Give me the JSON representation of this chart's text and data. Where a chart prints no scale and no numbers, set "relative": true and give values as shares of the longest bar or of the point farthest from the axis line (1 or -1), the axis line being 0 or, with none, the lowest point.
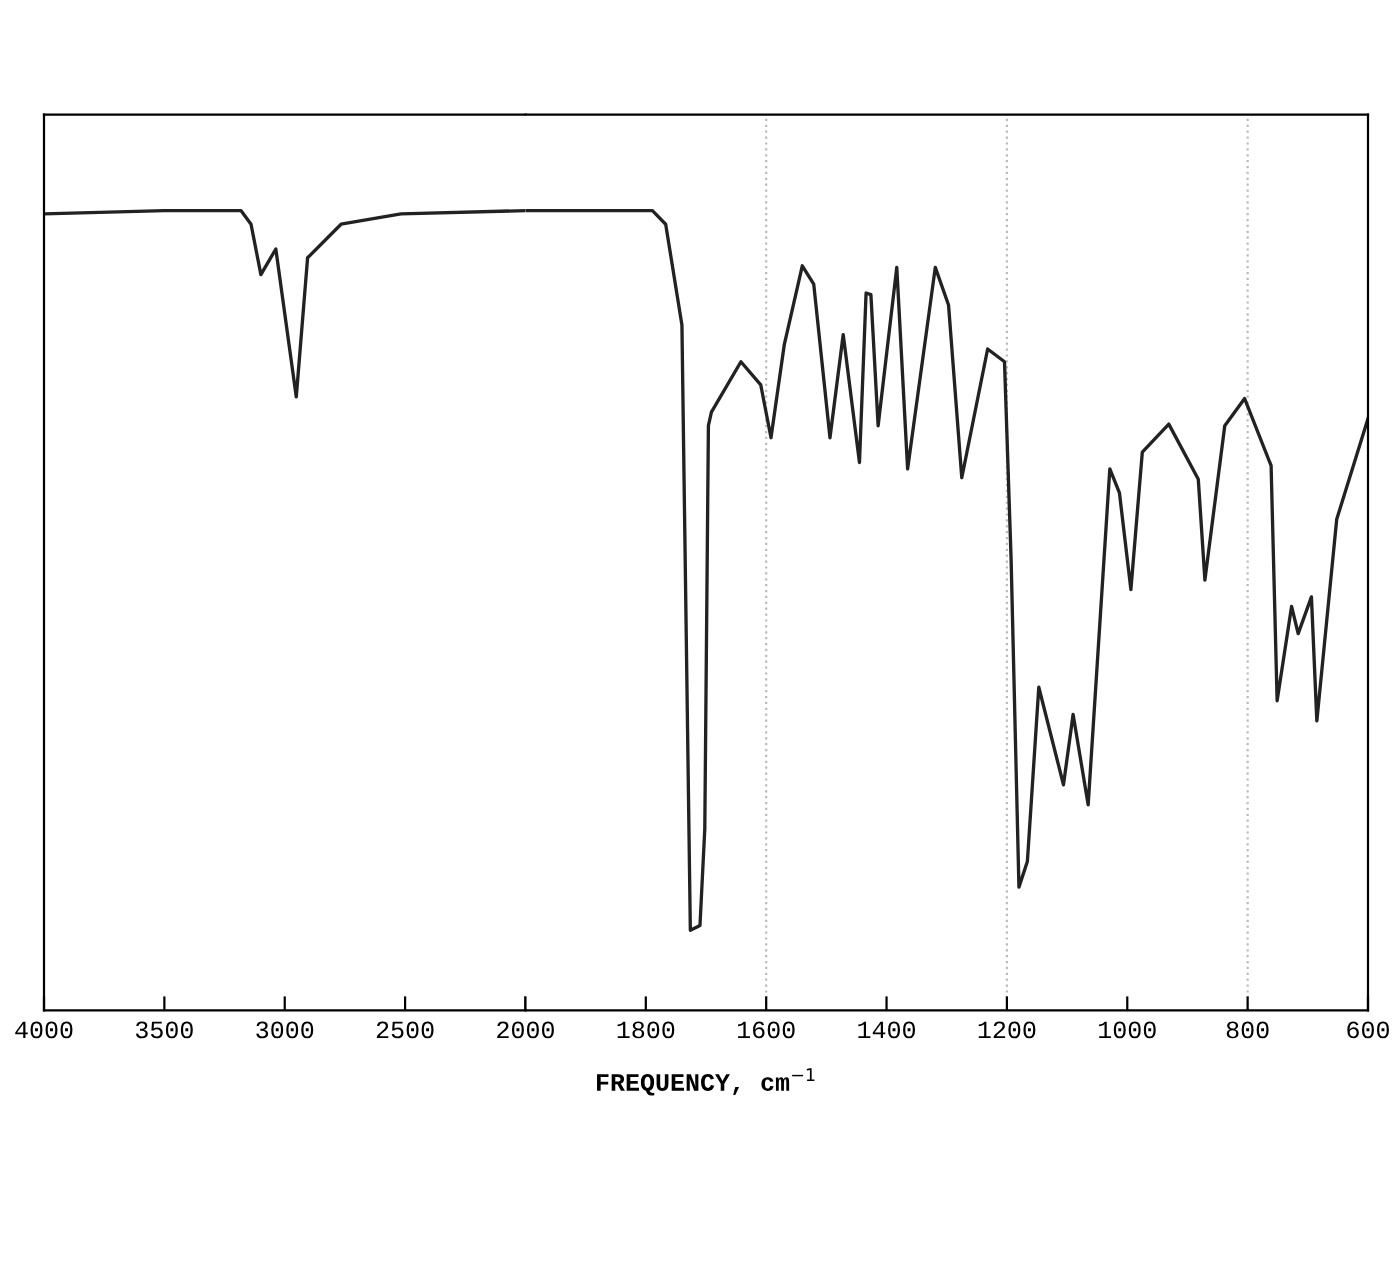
{
  "chart_data": [
    {
      "type": "line",
      "relative": true,
      "xlim": [
        4000,
        2000
      ],
      "xticks": [
        4000,
        3500,
        3000,
        2500,
        {
          "value": 2000,
          "label": null
        }
      ],
      "tick_labels": "x",
      "grid": false,
      "marker": "none",
      "line_style": "solid",
      "series": [
        {
          "color": "#222222",
          "x": [
            4000,
            3500,
            3182,
            3140,
            3099,
            3037,
            2952,
            2905,
            2766,
            2517,
            2000
          ],
          "values": [
            0.996,
            1.0,
            1.0,
            0.983,
            0.92,
            0.952,
            0.767,
            0.941,
            0.983,
            0.996,
            1.0
          ]
        }
      ]
    },
    {
      "type": "line",
      "relative": true,
      "xlabel": "FREQUENCY, cm$^{−1}$",
      "xlim": [
        2000,
        600
      ],
      "xticks": [
        2000,
        1800,
        1600,
        1400,
        1200,
        1000,
        800,
        600
      ],
      "tick_labels": "x",
      "grid": false,
      "marker": "none",
      "line_style": "solid",
      "ref_lines": [
        {
          "axis": "x",
          "value": 1600,
          "color": "#bbbbbb",
          "line_style": "dotted"
        },
        {
          "axis": "x",
          "value": 1200,
          "color": "#bbbbbb",
          "line_style": "dotted"
        },
        {
          "axis": "x",
          "value": 800,
          "color": "#bbbbbb",
          "line_style": "dotted"
        }
      ],
      "series": [
        {
          "color": "#222222",
          "x": [
            2000,
            1789,
            1767,
            1740,
            1726,
            1710,
            1702,
            1696,
            1691,
            1642,
            1609,
            1592,
            1570,
            1540,
            1521,
            1494,
            1472,
            1445,
            1434,
            1426,
            1414,
            1383,
            1365,
            1319,
            1297,
            1275,
            1232,
            1204,
            1193,
            1180,
            1166,
            1147,
            1106,
            1090,
            1065,
            1029,
            1013,
            994,
            975,
            931,
            882,
            871,
            838,
            805,
            761,
            751,
            727,
            716,
            694,
            685,
            652,
            600
          ],
          "values": [
            1.0,
            1.0,
            0.983,
            0.857,
            0.1,
            0.106,
            0.227,
            0.731,
            0.748,
            0.811,
            0.782,
            0.716,
            0.832,
            0.931,
            0.908,
            0.716,
            0.845,
            0.685,
            0.897,
            0.895,
            0.731,
            0.929,
            0.677,
            0.929,
            0.882,
            0.666,
            0.827,
            0.811,
            0.563,
            0.154,
            0.186,
            0.404,
            0.282,
            0.37,
            0.257,
            0.677,
            0.647,
            0.526,
            0.698,
            0.733,
            0.664,
            0.538,
            0.731,
            0.765,
            0.681,
            0.387,
            0.505,
            0.471,
            0.517,
            0.362,
            0.614,
            0.74
          ]
        }
      ]
    }
  ]
}
